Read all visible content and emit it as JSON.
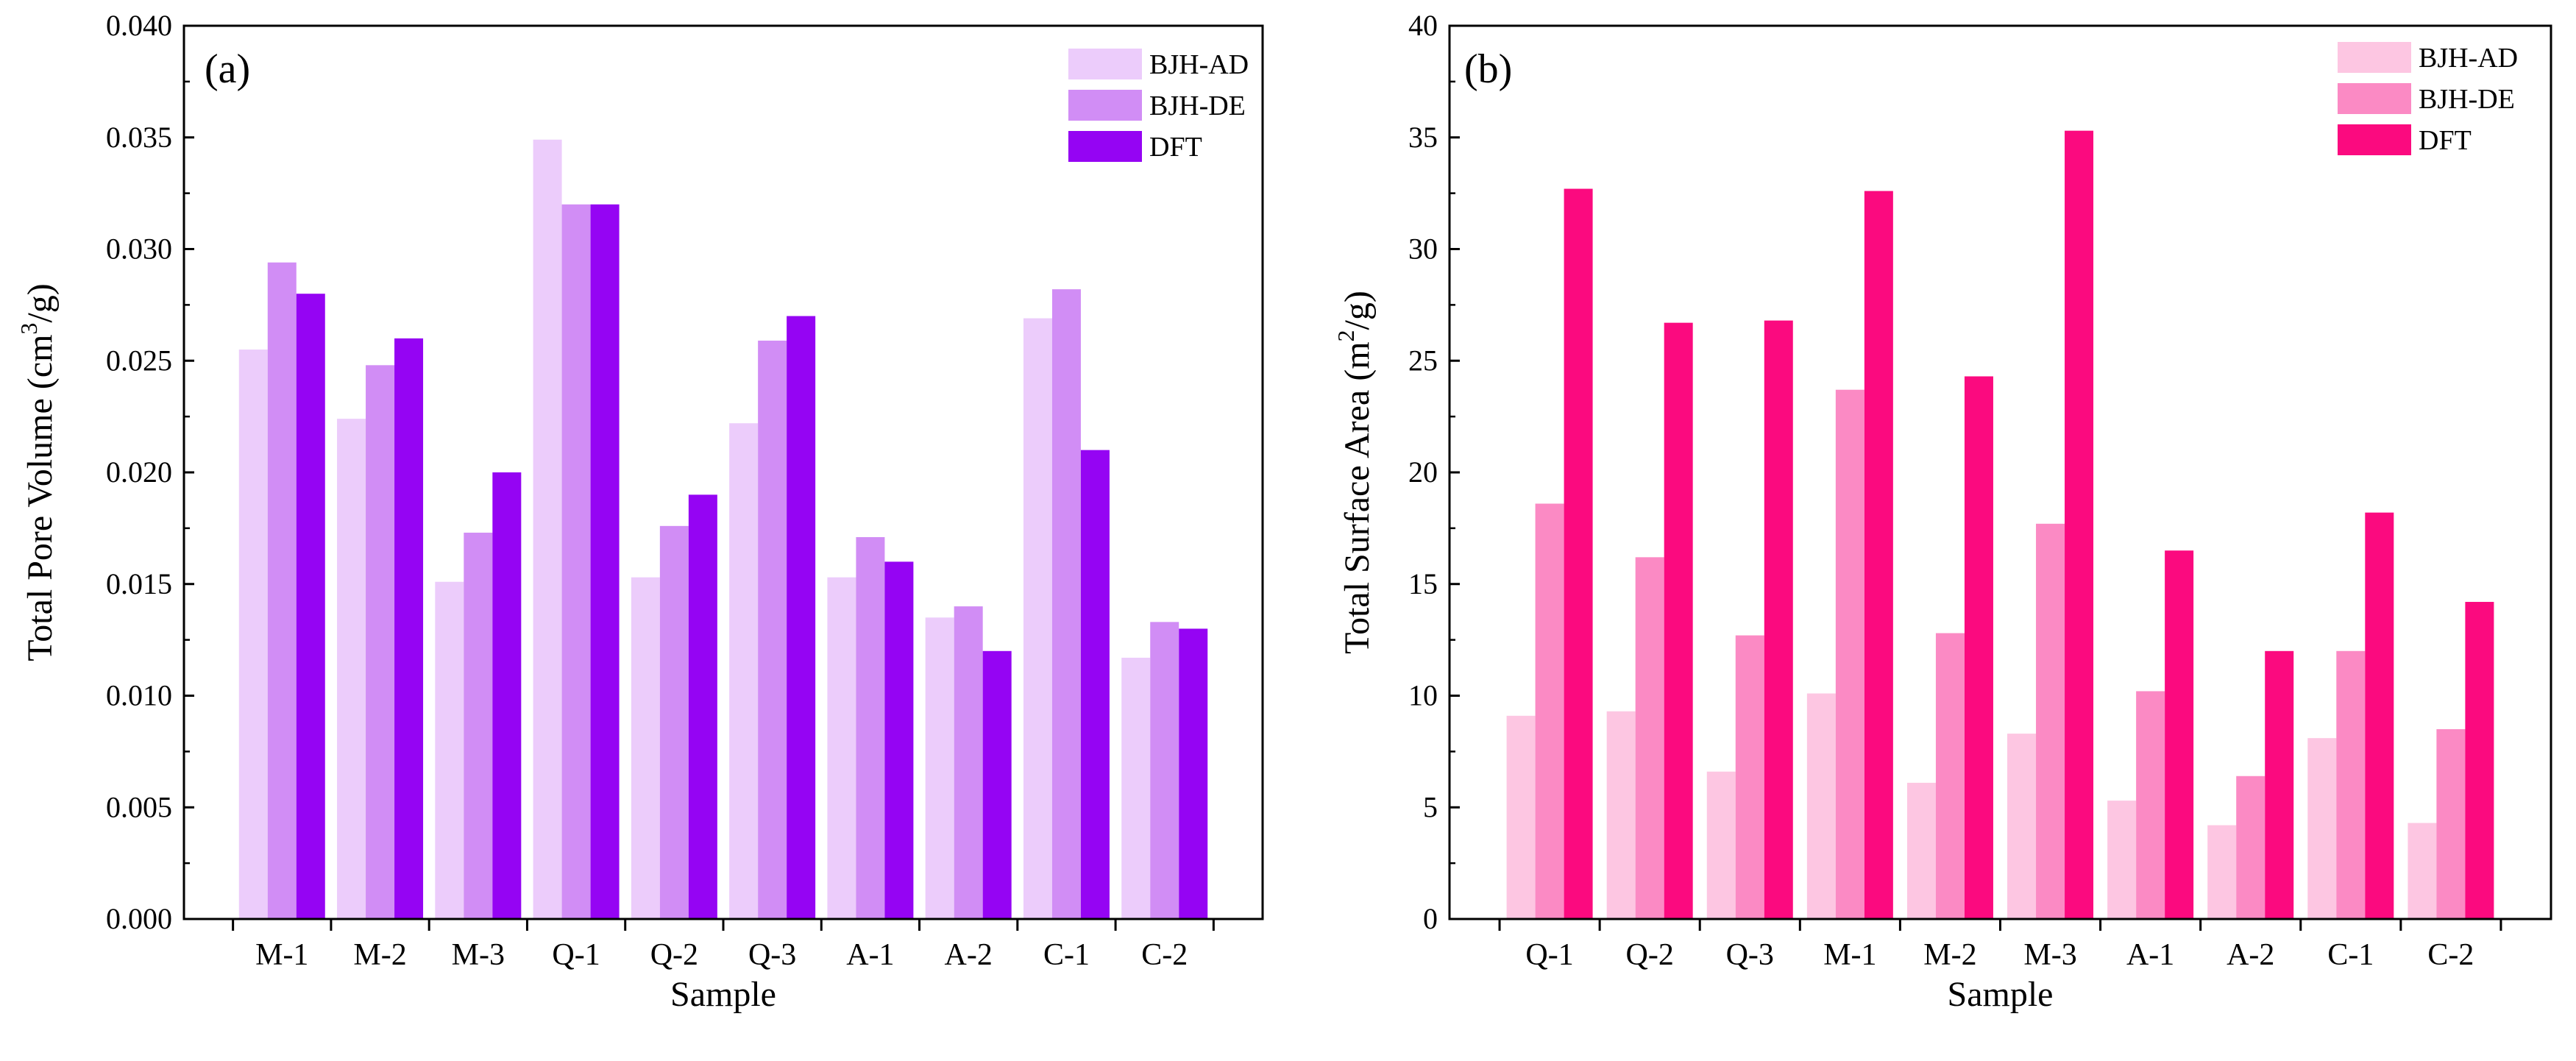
{
  "chart_data": [
    {
      "id": "a",
      "type": "bar",
      "panel_label": "(a)",
      "xlabel": "Sample",
      "ylabel": "Total Pore Volume (cm3/g)",
      "ylabel_parts": {
        "before": "Total Pore Volume (cm",
        "sup": "3",
        "after": "/g)"
      },
      "ylim": [
        0,
        0.04
      ],
      "yticks": [
        "0.000",
        "0.005",
        "0.010",
        "0.015",
        "0.020",
        "0.025",
        "0.030",
        "0.035",
        "0.040"
      ],
      "legend_position": "top-right",
      "categories": [
        "M-1",
        "M-2",
        "M-3",
        "Q-1",
        "Q-2",
        "Q-3",
        "A-1",
        "A-2",
        "C-1",
        "C-2"
      ],
      "series": [
        {
          "name": "BJH-AD",
          "color": "#ecccfb",
          "values": [
            0.0255,
            0.0224,
            0.0151,
            0.0349,
            0.0153,
            0.0222,
            0.0153,
            0.0135,
            0.0269,
            0.0117
          ]
        },
        {
          "name": "BJH-DE",
          "color": "#d18df5",
          "values": [
            0.0294,
            0.0248,
            0.0173,
            0.032,
            0.0176,
            0.0259,
            0.0171,
            0.014,
            0.0282,
            0.0133
          ]
        },
        {
          "name": "DFT",
          "color": "#9504f3",
          "values": [
            0.028,
            0.026,
            0.02,
            0.032,
            0.019,
            0.027,
            0.016,
            0.012,
            0.021,
            0.013
          ]
        }
      ]
    },
    {
      "id": "b",
      "type": "bar",
      "panel_label": "(b)",
      "xlabel": "Sample",
      "ylabel": "Total Surface Area (m2/g)",
      "ylabel_parts": {
        "before": "Total Surface Area (m",
        "sup": "2",
        "after": "/g)"
      },
      "ylim": [
        0,
        40
      ],
      "yticks": [
        "0",
        "5",
        "10",
        "15",
        "20",
        "25",
        "30",
        "35",
        "40"
      ],
      "legend_position": "top-right",
      "categories": [
        "Q-1",
        "Q-2",
        "Q-3",
        "M-1",
        "M-2",
        "M-3",
        "A-1",
        "A-2",
        "C-1",
        "C-2"
      ],
      "series": [
        {
          "name": "BJH-AD",
          "color": "#fdc6e2",
          "values": [
            9.1,
            9.3,
            6.6,
            10.1,
            6.1,
            8.3,
            5.3,
            4.2,
            8.1,
            4.3
          ]
        },
        {
          "name": "BJH-DE",
          "color": "#fb8ac4",
          "values": [
            18.6,
            16.2,
            12.7,
            23.7,
            12.8,
            17.7,
            10.2,
            6.4,
            12.0,
            8.5
          ]
        },
        {
          "name": "DFT",
          "color": "#fb0a7f",
          "values": [
            32.7,
            26.7,
            26.8,
            32.6,
            24.3,
            35.3,
            16.5,
            12.0,
            18.2,
            14.2
          ]
        }
      ]
    }
  ]
}
